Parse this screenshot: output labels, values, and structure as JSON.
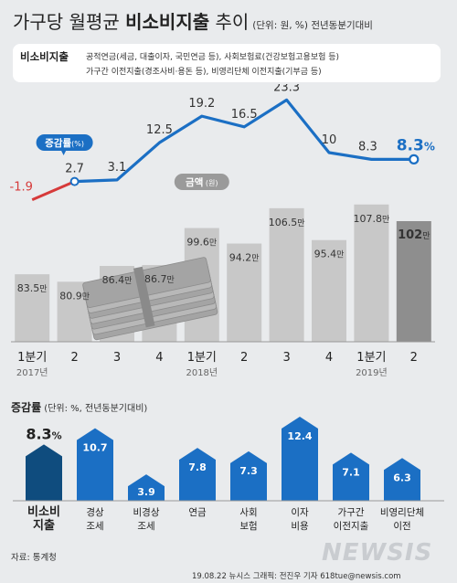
{
  "header": {
    "title_pre": "가구당 월평균 ",
    "title_bold": "비소비지출",
    "title_post": " 추이",
    "unit": "(단위: 원, %)  전년동분기대비"
  },
  "definition": {
    "label": "비소비지출",
    "line1": "공적연금(세금, 대출이자, 국민연금 등), 사회보험료(건강보험고용보험 등)",
    "line2": "가구간 이전지출(경조사비·용돈 등), 비영리단체 이전지출(기부금 등)"
  },
  "chart_data": [
    {
      "type": "bar",
      "categories": [
        "1분기",
        "2",
        "3",
        "4",
        "1분기",
        "2",
        "3",
        "4",
        "1분기",
        "2"
      ],
      "year_labels": [
        "2017년",
        "2018년",
        "2019년"
      ],
      "amount_unit": "만",
      "amount_labels": [
        "83.5만",
        "80.9만",
        "86.4만",
        "86.7만",
        "99.6만",
        "94.2만",
        "106.5만",
        "95.4만",
        "107.8만",
        "102만"
      ],
      "series": [
        {
          "name": "금액",
          "unit": "(원)",
          "values": [
            83.5,
            80.9,
            86.4,
            86.7,
            99.6,
            94.2,
            106.5,
            95.4,
            107.8,
            102
          ]
        },
        {
          "name": "증감률",
          "unit": "(%)",
          "values": [
            -1.9,
            2.7,
            3.1,
            12.5,
            19.2,
            16.5,
            23.3,
            10,
            8.3,
            8.3
          ]
        }
      ],
      "rate_labels": [
        "-1.9",
        "2.7",
        "3.1",
        "12.5",
        "19.2",
        "16.5",
        "23.3",
        "10",
        "8.3",
        "8.3"
      ],
      "last_rate_unit": "%",
      "colors": {
        "bar": "#c8c8c8",
        "bar_last": "#8e8e8e",
        "line": "#1b6fc4",
        "line_start": "#d63a3a"
      }
    },
    {
      "type": "bar",
      "title": "증감률",
      "subtitle": "(단위: %, 전년동분기대비)",
      "categories": [
        [
          "비소비",
          "지출"
        ],
        [
          "경상",
          "조세"
        ],
        [
          "비경상",
          "조세"
        ],
        [
          "연금"
        ],
        [
          "사회",
          "보험"
        ],
        [
          "이자",
          "비용"
        ],
        [
          "가구간",
          "이전지출"
        ],
        [
          "비영리단체",
          "이전"
        ]
      ],
      "values": [
        8.3,
        10.7,
        3.9,
        7.8,
        7.3,
        12.4,
        7.1,
        6.3
      ],
      "value_labels": [
        "8.3",
        "10.7",
        "3.9",
        "7.8",
        "7.3",
        "12.4",
        "7.1",
        "6.3"
      ],
      "first_unit": "%",
      "colors": {
        "first": "#0f4c7e",
        "others": "#1b6fc4"
      }
    }
  ],
  "footer": {
    "source": "자료: 통계청",
    "credit": "19.08.22  뉴시스 그래픽: 전진우 기자  618tue@newsis.com",
    "logo": "NEWSIS"
  }
}
